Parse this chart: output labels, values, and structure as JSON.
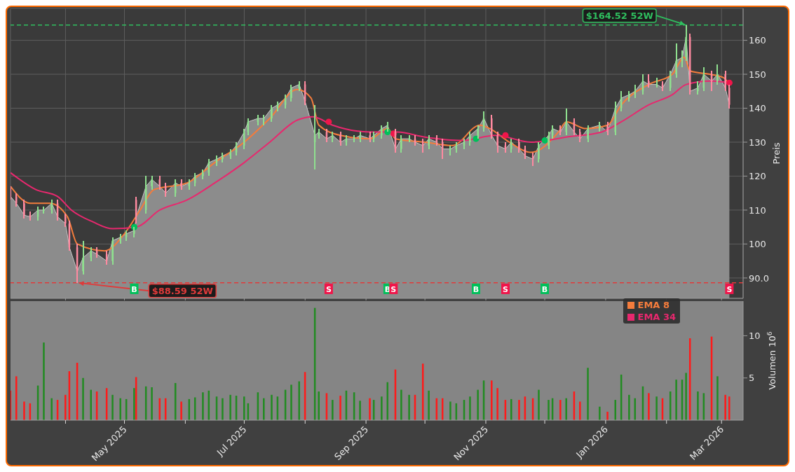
{
  "chart_data": [
    {
      "type": "candlestick",
      "ylabel": "Preis",
      "tick_labels": "y",
      "grid": true,
      "legend": "bottom right",
      "x": [
        "2025-03-04",
        "2025-03-07",
        "2025-03-11",
        "2025-03-14",
        "2025-03-18",
        "2025-03-21",
        "2025-03-25",
        "2025-03-28",
        "2025-04-01",
        "2025-04-03",
        "2025-04-07",
        "2025-04-10",
        "2025-04-14",
        "2025-04-17",
        "2025-04-22",
        "2025-04-25",
        "2025-04-29",
        "2025-05-02",
        "2025-05-06",
        "2025-05-07",
        "2025-05-12",
        "2025-05-15",
        "2025-05-19",
        "2025-05-22",
        "2025-05-27",
        "2025-05-30",
        "2025-06-03",
        "2025-06-06",
        "2025-06-10",
        "2025-06-13",
        "2025-06-17",
        "2025-06-20",
        "2025-06-24",
        "2025-06-27",
        "2025-07-01",
        "2025-07-03",
        "2025-07-08",
        "2025-07-11",
        "2025-07-15",
        "2025-07-18",
        "2025-07-22",
        "2025-07-25",
        "2025-07-29",
        "2025-08-01",
        "2025-08-06",
        "2025-08-08",
        "2025-08-12",
        "2025-08-15",
        "2025-08-19",
        "2025-08-22",
        "2025-08-26",
        "2025-08-29",
        "2025-09-03",
        "2025-09-05",
        "2025-09-09",
        "2025-09-12",
        "2025-09-16",
        "2025-09-19",
        "2025-09-23",
        "2025-09-26",
        "2025-09-30",
        "2025-10-03",
        "2025-10-07",
        "2025-10-10",
        "2025-10-14",
        "2025-10-17",
        "2025-10-21",
        "2025-10-24",
        "2025-10-28",
        "2025-10-31",
        "2025-11-04",
        "2025-11-07",
        "2025-11-11",
        "2025-11-14",
        "2025-11-18",
        "2025-11-21",
        "2025-11-25",
        "2025-11-28",
        "2025-12-03",
        "2025-12-05",
        "2025-12-09",
        "2025-12-12",
        "2025-12-16",
        "2025-12-19",
        "2025-12-23",
        "2025-12-29",
        "2026-01-02",
        "2026-01-06",
        "2026-01-09",
        "2026-01-13",
        "2026-01-16",
        "2026-01-20",
        "2026-01-23",
        "2026-01-27",
        "2026-01-30",
        "2026-02-03",
        "2026-02-06",
        "2026-02-09",
        "2026-02-11",
        "2026-02-13",
        "2026-02-17",
        "2026-02-20",
        "2026-02-24",
        "2026-02-27",
        "2026-03-03",
        "2026-03-05"
      ],
      "ohlc": [
        [
          116,
          117,
          113,
          114
        ],
        [
          114,
          115,
          111,
          112
        ],
        [
          112,
          113,
          107.5,
          108.5
        ],
        [
          108.5,
          109.5,
          107,
          108
        ],
        [
          108,
          111,
          107,
          110
        ],
        [
          110,
          111,
          109,
          110
        ],
        [
          110,
          113,
          109,
          112
        ],
        [
          112,
          113,
          107,
          108
        ],
        [
          108,
          109,
          105,
          106
        ],
        [
          106,
          107,
          98,
          99
        ],
        [
          99,
          100,
          88.59,
          92
        ],
        [
          92,
          101,
          91,
          96
        ],
        [
          96,
          99,
          95,
          98
        ],
        [
          98,
          99,
          96,
          97
        ],
        [
          97,
          98,
          94,
          95
        ],
        [
          95,
          102,
          94,
          101
        ],
        [
          101,
          103,
          100,
          102
        ],
        [
          102,
          104,
          101,
          103
        ],
        [
          103,
          105,
          102,
          104
        ],
        [
          113,
          114,
          106,
          108
        ],
        [
          110,
          120,
          109,
          117
        ],
        [
          117,
          120,
          116,
          119
        ],
        [
          119,
          120,
          116,
          117
        ],
        [
          117,
          118,
          114,
          115
        ],
        [
          115,
          119,
          114,
          118
        ],
        [
          118,
          119,
          116,
          117
        ],
        [
          117,
          119,
          116,
          118
        ],
        [
          118,
          121,
          117,
          120
        ],
        [
          120,
          122,
          119,
          121
        ],
        [
          121,
          125,
          120,
          124
        ],
        [
          124,
          126,
          123,
          125
        ],
        [
          125,
          127,
          124,
          126
        ],
        [
          126,
          128,
          125,
          127
        ],
        [
          127,
          130,
          126,
          129
        ],
        [
          129,
          134,
          128,
          133
        ],
        [
          133,
          137,
          132,
          136
        ],
        [
          136,
          138,
          135,
          137
        ],
        [
          137,
          138,
          135,
          137
        ],
        [
          137,
          141,
          136,
          140
        ],
        [
          140,
          142,
          139,
          141
        ],
        [
          141,
          144,
          140,
          143
        ],
        [
          143,
          147,
          142,
          146
        ],
        [
          146,
          148,
          145,
          147
        ],
        [
          147,
          148,
          141,
          142
        ],
        [
          130,
          141,
          122,
          132
        ],
        [
          132,
          134,
          131,
          133
        ],
        [
          133,
          134,
          130,
          131
        ],
        [
          131,
          133,
          130,
          132
        ],
        [
          132,
          133,
          129,
          130
        ],
        [
          130,
          132,
          129,
          131
        ],
        [
          131,
          132,
          130,
          131
        ],
        [
          131,
          133,
          130,
          132
        ],
        [
          132,
          133,
          130,
          131
        ],
        [
          131,
          133,
          130,
          132
        ],
        [
          132,
          135,
          131,
          134
        ],
        [
          134,
          136,
          133,
          135
        ],
        [
          133,
          134,
          127,
          128
        ],
        [
          128,
          132,
          127,
          131
        ],
        [
          131,
          132,
          130,
          131
        ],
        [
          131,
          132,
          129,
          130
        ],
        [
          130,
          131,
          127,
          129
        ],
        [
          129,
          132,
          128,
          131
        ],
        [
          131,
          132,
          129,
          130
        ],
        [
          130,
          131,
          125,
          128
        ],
        [
          128,
          129,
          126,
          128
        ],
        [
          128,
          130,
          127,
          129
        ],
        [
          129,
          131,
          128,
          130
        ],
        [
          130,
          133,
          129,
          132
        ],
        [
          132,
          135,
          131,
          134
        ],
        [
          134,
          139,
          133,
          137
        ],
        [
          137,
          138,
          131,
          132
        ],
        [
          132,
          133,
          127,
          129
        ],
        [
          129,
          130,
          127,
          128
        ],
        [
          128,
          131,
          127,
          130
        ],
        [
          130,
          131,
          127,
          128
        ],
        [
          128,
          129,
          125,
          126
        ],
        [
          126,
          127,
          123,
          125
        ],
        [
          125,
          130,
          124,
          129
        ],
        [
          129,
          133,
          128,
          132
        ],
        [
          132,
          135,
          131,
          134
        ],
        [
          134,
          135,
          132,
          133
        ],
        [
          133,
          140,
          132,
          136
        ],
        [
          136,
          137,
          132,
          133
        ],
        [
          133,
          134,
          130,
          131
        ],
        [
          131,
          135,
          130,
          134
        ],
        [
          134,
          136,
          133,
          135
        ],
        [
          135,
          136,
          132,
          133
        ],
        [
          133,
          142,
          132,
          140
        ],
        [
          140,
          145,
          139,
          143
        ],
        [
          143,
          145,
          142,
          144
        ],
        [
          144,
          147,
          143,
          145
        ],
        [
          145,
          150,
          144,
          148
        ],
        [
          148,
          150,
          146,
          147
        ],
        [
          147,
          149,
          146,
          147
        ],
        [
          147,
          148,
          145,
          146
        ],
        [
          146,
          151,
          145,
          150
        ],
        [
          150,
          159,
          149,
          154
        ],
        [
          154,
          157,
          152,
          155
        ],
        [
          155,
          164.52,
          154,
          161
        ],
        [
          161,
          162,
          144,
          145
        ],
        [
          145,
          148,
          144,
          146
        ],
        [
          146,
          152,
          145,
          150
        ],
        [
          150,
          151,
          145,
          148
        ],
        [
          148,
          153,
          147,
          150
        ],
        [
          150,
          151,
          145,
          146
        ],
        [
          146,
          147,
          140,
          141
        ]
      ],
      "series": [
        {
          "type": "area",
          "color": "#8c8c8c",
          "values": [
            114,
            112,
            108.5,
            108,
            110,
            110,
            112,
            108,
            106,
            99,
            92,
            96,
            98,
            97,
            95,
            101,
            102,
            103,
            104,
            108,
            117,
            119,
            117,
            115,
            118,
            117,
            118,
            120,
            121,
            124,
            125,
            126,
            127,
            129,
            133,
            136,
            137,
            137,
            140,
            141,
            143,
            146,
            147,
            142,
            132,
            133,
            131,
            132,
            130,
            131,
            131,
            132,
            131,
            132,
            134,
            135,
            128,
            131,
            131,
            130,
            129,
            131,
            130,
            128,
            128,
            129,
            130,
            132,
            134,
            137,
            132,
            129,
            128,
            130,
            128,
            126,
            125,
            129,
            132,
            134,
            133,
            136,
            133,
            131,
            134,
            135,
            133,
            140,
            143,
            144,
            145,
            148,
            147,
            147,
            146,
            150,
            154,
            155,
            161,
            145,
            146,
            150,
            148,
            150,
            146,
            141
          ]
        },
        {
          "type": "line",
          "name": "EMA 8",
          "color": "#f47c3c",
          "x": [
            "2025-03-04",
            "2025-03-14",
            "2025-03-24",
            "2025-04-02",
            "2025-04-07",
            "2025-04-21",
            "2025-05-01",
            "2025-05-09",
            "2025-05-16",
            "2025-06-02",
            "2025-06-16",
            "2025-07-01",
            "2025-07-14",
            "2025-07-28",
            "2025-08-04",
            "2025-08-08",
            "2025-08-19",
            "2025-09-03",
            "2025-09-12",
            "2025-09-16",
            "2025-10-01",
            "2025-10-15",
            "2025-10-29",
            "2025-11-03",
            "2025-11-13",
            "2025-11-24",
            "2025-12-08",
            "2025-12-12",
            "2025-12-22",
            "2026-01-02",
            "2026-01-09",
            "2026-01-23",
            "2026-02-04",
            "2026-02-10",
            "2026-02-13",
            "2026-02-23",
            "2026-03-02",
            "2026-03-05"
          ],
          "values": [
            117,
            112,
            112,
            108,
            100,
            98,
            103,
            110,
            116,
            118,
            124,
            130,
            137,
            145.5,
            143,
            135,
            132,
            131,
            134,
            131,
            130,
            129,
            135,
            134,
            130,
            127,
            133,
            136,
            134,
            135,
            141,
            147,
            150,
            155,
            151,
            150,
            149,
            147
          ]
        },
        {
          "type": "line",
          "name": "EMA 34",
          "color": "#e8286e",
          "x": [
            "2025-03-04",
            "2025-03-17",
            "2025-03-28",
            "2025-04-04",
            "2025-04-15",
            "2025-04-25",
            "2025-05-07",
            "2025-05-19",
            "2025-06-02",
            "2025-06-16",
            "2025-07-01",
            "2025-07-14",
            "2025-07-28",
            "2025-08-05",
            "2025-08-15",
            "2025-09-03",
            "2025-09-17",
            "2025-10-01",
            "2025-10-20",
            "2025-11-06",
            "2025-11-24",
            "2025-12-12",
            "2025-12-30",
            "2026-01-09",
            "2026-01-23",
            "2026-02-04",
            "2026-02-11",
            "2026-02-23",
            "2026-03-05"
          ],
          "values": [
            121,
            116,
            114,
            110,
            106.5,
            104.5,
            105,
            110,
            113,
            118,
            124,
            130,
            136.5,
            137.5,
            135,
            133,
            133,
            131.5,
            130.5,
            132,
            130,
            131.5,
            133,
            136,
            141,
            144,
            147,
            148,
            147.5
          ]
        },
        {
          "type": "scatter",
          "x": [
            "2025-05-06",
            "2025-08-13",
            "2025-09-12",
            "2025-09-15",
            "2025-10-27",
            "2025-11-11",
            "2025-12-01",
            "2026-03-05"
          ],
          "values": [
            105,
            136,
            133,
            132.5,
            131,
            132,
            130.5,
            147.5
          ],
          "colors": [
            "#00c05a",
            "#f0154a",
            "#00c05a",
            "#f0154a",
            "#00c05a",
            "#f0154a",
            "#00c05a",
            "#f0154a"
          ]
        }
      ],
      "xlim": [
        "2025-03-04",
        "2026-03-12"
      ],
      "xticks": [
        {
          "value": "2025-04-01",
          "label": null
        },
        {
          "value": "2025-05-01",
          "label": null
        },
        {
          "value": "2025-06-01",
          "label": null
        },
        {
          "value": "2025-07-01",
          "label": null
        },
        {
          "value": "2025-08-01",
          "label": null
        },
        {
          "value": "2025-09-01",
          "label": null
        },
        {
          "value": "2025-10-01",
          "label": null
        },
        {
          "value": "2025-11-01",
          "label": null
        },
        {
          "value": "2025-12-01",
          "label": null
        },
        {
          "value": "2026-01-01",
          "label": null
        },
        {
          "value": "2026-02-01",
          "label": null
        },
        {
          "value": "2026-03-01",
          "label": null
        }
      ],
      "ylim": [
        84,
        169.4
      ],
      "yticks": [
        {
          "value": 90,
          "label": "90.0"
        },
        100,
        110,
        120,
        130,
        140,
        150,
        160
      ],
      "ref_lines": [
        {
          "axis": "y",
          "value": 164.52,
          "label": "$164.52 52W",
          "color": "#2fbf5f",
          "line_style": "dashed"
        },
        {
          "axis": "y",
          "value": 88.59,
          "label": "$88.59 52W",
          "color": "#e03a3a",
          "line_style": "dashed"
        }
      ],
      "annotations": [
        {
          "text": "B",
          "x": "2025-05-06",
          "y": 86.7
        },
        {
          "text": "S",
          "x": "2025-08-13",
          "y": 86.7
        },
        {
          "text": "B",
          "x": "2025-09-12",
          "y": 86.7
        },
        {
          "text": "S",
          "x": "2025-09-15",
          "y": 86.7
        },
        {
          "text": "B",
          "x": "2025-10-27",
          "y": 86.7
        },
        {
          "text": "S",
          "x": "2025-11-11",
          "y": 86.7
        },
        {
          "text": "B",
          "x": "2025-12-01",
          "y": 86.7
        },
        {
          "text": "S",
          "x": "2026-03-05",
          "y": 86.7
        }
      ]
    },
    {
      "type": "bar",
      "ylabel": "Volumen 10$^{6}$",
      "grid": false,
      "x": [
        "2025-03-04",
        "2025-03-07",
        "2025-03-11",
        "2025-03-14",
        "2025-03-18",
        "2025-03-21",
        "2025-03-25",
        "2025-03-28",
        "2025-04-01",
        "2025-04-03",
        "2025-04-07",
        "2025-04-10",
        "2025-04-14",
        "2025-04-17",
        "2025-04-22",
        "2025-04-25",
        "2025-04-29",
        "2025-05-02",
        "2025-05-06",
        "2025-05-07",
        "2025-05-12",
        "2025-05-15",
        "2025-05-19",
        "2025-05-22",
        "2025-05-27",
        "2025-05-30",
        "2025-06-03",
        "2025-06-06",
        "2025-06-10",
        "2025-06-13",
        "2025-06-17",
        "2025-06-20",
        "2025-06-24",
        "2025-06-27",
        "2025-07-01",
        "2025-07-03",
        "2025-07-08",
        "2025-07-11",
        "2025-07-15",
        "2025-07-18",
        "2025-07-22",
        "2025-07-25",
        "2025-07-29",
        "2025-08-01",
        "2025-08-06",
        "2025-08-08",
        "2025-08-12",
        "2025-08-15",
        "2025-08-19",
        "2025-08-22",
        "2025-08-26",
        "2025-08-29",
        "2025-09-03",
        "2025-09-05",
        "2025-09-09",
        "2025-09-12",
        "2025-09-16",
        "2025-09-19",
        "2025-09-23",
        "2025-09-26",
        "2025-09-30",
        "2025-10-03",
        "2025-10-07",
        "2025-10-10",
        "2025-10-14",
        "2025-10-17",
        "2025-10-21",
        "2025-10-24",
        "2025-10-28",
        "2025-10-31",
        "2025-11-04",
        "2025-11-07",
        "2025-11-11",
        "2025-11-14",
        "2025-11-18",
        "2025-11-21",
        "2025-11-25",
        "2025-11-28",
        "2025-12-03",
        "2025-12-05",
        "2025-12-09",
        "2025-12-12",
        "2025-12-16",
        "2025-12-19",
        "2025-12-23",
        "2025-12-29",
        "2026-01-02",
        "2026-01-06",
        "2026-01-09",
        "2026-01-13",
        "2026-01-16",
        "2026-01-20",
        "2026-01-23",
        "2026-01-27",
        "2026-01-30",
        "2026-02-03",
        "2026-02-06",
        "2026-02-09",
        "2026-02-11",
        "2026-02-13",
        "2026-02-17",
        "2026-02-20",
        "2026-02-24",
        "2026-02-27",
        "2026-03-03",
        "2026-03-05"
      ],
      "values": [
        3.5,
        5.2,
        2.2,
        2.0,
        4.1,
        9.2,
        2.6,
        2.4,
        3.0,
        5.8,
        6.8,
        5.0,
        3.6,
        3.4,
        3.8,
        3.0,
        2.6,
        2.5,
        3.8,
        5.1,
        4.0,
        3.9,
        2.6,
        2.6,
        4.4,
        2.2,
        2.5,
        2.7,
        3.3,
        3.5,
        2.8,
        2.6,
        3.0,
        2.9,
        2.8,
        2.0,
        3.3,
        2.6,
        3.0,
        2.8,
        3.6,
        4.2,
        4.6,
        5.7,
        13.3,
        3.4,
        3.2,
        2.4,
        2.9,
        3.5,
        3.3,
        2.3,
        2.6,
        2.4,
        2.8,
        4.5,
        6.0,
        3.6,
        3.0,
        3.0,
        6.7,
        3.5,
        2.6,
        2.6,
        2.2,
        2.0,
        2.4,
        2.8,
        3.6,
        4.7,
        4.7,
        3.8,
        2.4,
        2.5,
        2.4,
        2.8,
        2.6,
        3.6,
        2.4,
        2.6,
        2.4,
        2.6,
        3.4,
        2.2,
        6.2,
        1.6,
        1.0,
        2.4,
        5.4,
        3.0,
        2.6,
        4.0,
        3.2,
        2.8,
        2.6,
        3.4,
        4.8,
        4.8,
        5.6,
        9.7,
        3.4,
        3.2,
        9.9,
        5.2,
        3.0,
        2.8
      ],
      "colors": [
        "#ff1a1a",
        "#ff1a1a",
        "#ff1a1a",
        "#ff1a1a",
        "#228b22",
        "#228b22",
        "#228b22",
        "#ff1a1a",
        "#ff1a1a",
        "#ff1a1a",
        "#ff1a1a",
        "#228b22",
        "#228b22",
        "#ff1a1a",
        "#ff1a1a",
        "#228b22",
        "#228b22",
        "#228b22",
        "#228b22",
        "#ff1a1a",
        "#228b22",
        "#228b22",
        "#ff1a1a",
        "#ff1a1a",
        "#228b22",
        "#ff1a1a",
        "#228b22",
        "#228b22",
        "#228b22",
        "#228b22",
        "#228b22",
        "#228b22",
        "#228b22",
        "#228b22",
        "#228b22",
        "#228b22",
        "#228b22",
        "#228b22",
        "#228b22",
        "#228b22",
        "#228b22",
        "#228b22",
        "#228b22",
        "#ff1a1a",
        "#228b22",
        "#228b22",
        "#ff1a1a",
        "#228b22",
        "#ff1a1a",
        "#228b22",
        "#228b22",
        "#228b22",
        "#ff1a1a",
        "#228b22",
        "#228b22",
        "#228b22",
        "#ff1a1a",
        "#228b22",
        "#228b22",
        "#ff1a1a",
        "#ff1a1a",
        "#228b22",
        "#ff1a1a",
        "#ff1a1a",
        "#228b22",
        "#228b22",
        "#228b22",
        "#228b22",
        "#228b22",
        "#228b22",
        "#ff1a1a",
        "#ff1a1a",
        "#ff1a1a",
        "#228b22",
        "#ff1a1a",
        "#ff1a1a",
        "#ff1a1a",
        "#228b22",
        "#228b22",
        "#228b22",
        "#ff1a1a",
        "#228b22",
        "#ff1a1a",
        "#ff1a1a",
        "#228b22",
        "#228b22",
        "#ff1a1a",
        "#228b22",
        "#228b22",
        "#228b22",
        "#228b22",
        "#228b22",
        "#ff1a1a",
        "#228b22",
        "#ff1a1a",
        "#228b22",
        "#228b22",
        "#228b22",
        "#228b22",
        "#ff1a1a",
        "#228b22",
        "#228b22",
        "#ff1a1a",
        "#228b22",
        "#ff1a1a",
        "#ff1a1a"
      ],
      "xlim": [
        "2025-03-04",
        "2026-03-12"
      ],
      "xticks": [
        {
          "value": "2025-04-01",
          "label": null
        },
        {
          "value": "2025-05-01",
          "label": "May 2025"
        },
        {
          "value": "2025-06-01",
          "label": null
        },
        {
          "value": "2025-07-01",
          "label": "Jul 2025"
        },
        {
          "value": "2025-08-01",
          "label": null
        },
        {
          "value": "2025-09-01",
          "label": "Sep 2025"
        },
        {
          "value": "2025-10-01",
          "label": null
        },
        {
          "value": "2025-11-01",
          "label": "Nov 2025"
        },
        {
          "value": "2025-12-01",
          "label": null
        },
        {
          "value": "2026-01-01",
          "label": "Jan 2026"
        },
        {
          "value": "2026-02-01",
          "label": null
        },
        {
          "value": "2026-03-01",
          "label": "Mar 2026"
        }
      ],
      "ylim": [
        0,
        14.1
      ],
      "yticks": [
        5,
        10
      ]
    }
  ]
}
